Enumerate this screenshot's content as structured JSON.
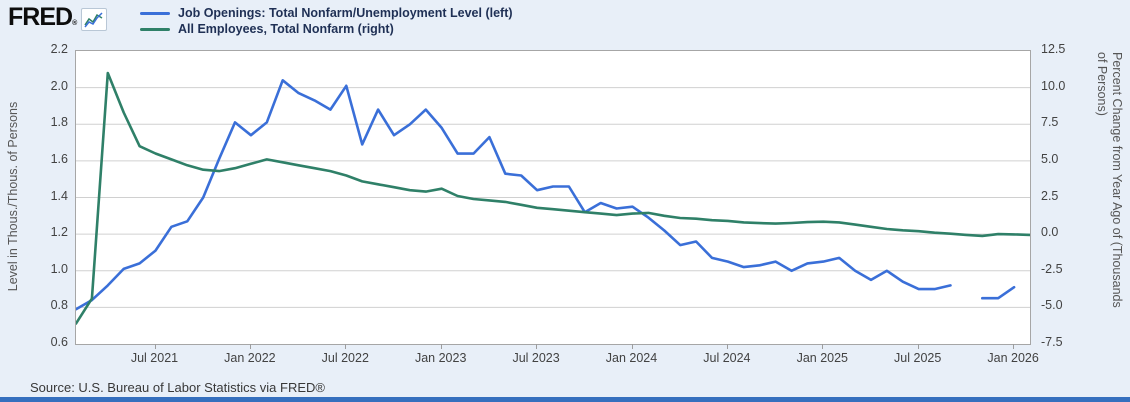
{
  "header": {
    "logo_text": "FRED",
    "registered_mark": "®"
  },
  "legend": [
    {
      "label": "Job Openings: Total Nonfarm/Unemployment Level (left)",
      "color": "#3a6fd8"
    },
    {
      "label": "All Employees, Total Nonfarm (right)",
      "color": "#2f8068"
    }
  ],
  "source": "Source: U.S. Bureau of Labor Statistics via FRED®",
  "colors": {
    "page_background": "#e8eff8",
    "plot_background": "#ffffff",
    "grid": "#d0d0d0",
    "plot_border": "#a6a6a6",
    "bottom_bar": "#356fbe",
    "blue_series": "#3a6fd8",
    "green_series": "#2f8068"
  },
  "chart_data": {
    "type": "line",
    "title": "",
    "frequency": "monthly",
    "x_start": "2021-02",
    "x_end": "2026-02",
    "months_total": 60,
    "grid": "horizontal-only",
    "legend_position": "top-left",
    "x_ticks": [
      {
        "label": "Jul 2021",
        "m": 5
      },
      {
        "label": "Jan 2022",
        "m": 11
      },
      {
        "label": "Jul 2022",
        "m": 17
      },
      {
        "label": "Jan 2023",
        "m": 23
      },
      {
        "label": "Jul 2023",
        "m": 29
      },
      {
        "label": "Jan 2024",
        "m": 35
      },
      {
        "label": "Jul 2024",
        "m": 41
      },
      {
        "label": "Jan 2025",
        "m": 47
      },
      {
        "label": "Jul 2025",
        "m": 53
      },
      {
        "label": "Jan 2026",
        "m": 59
      }
    ],
    "left_axis": {
      "label": "Level in Thous./Thous. of Persons",
      "min": 0.6,
      "max": 2.2,
      "ticks": [
        "2.2",
        "2.0",
        "1.8",
        "1.6",
        "1.4",
        "1.2",
        "1.0",
        "0.8",
        "0.6"
      ]
    },
    "right_axis": {
      "label_lines": [
        "Percent Change from Year Ago of (Thousands",
        "of Persons)"
      ],
      "min": -7.5,
      "max": 12.5,
      "ticks": [
        "12.5",
        "10.0",
        "7.5",
        "5.0",
        "2.5",
        "0.0",
        "-2.5",
        "-5.0",
        "-7.5"
      ]
    },
    "series": [
      {
        "name": "Job Openings: Total Nonfarm/Unemployment Level",
        "axis": "left",
        "color": "#3a6fd8",
        "segments": [
          {
            "start_month": "2021-02",
            "start_m": 0,
            "values": [
              0.79,
              0.84,
              0.92,
              1.01,
              1.04,
              1.11,
              1.24,
              1.27,
              1.4,
              1.61,
              1.81,
              1.74,
              1.81,
              2.04,
              1.97,
              1.93,
              1.88,
              2.01,
              1.69,
              1.88,
              1.74,
              1.8,
              1.88,
              1.78,
              1.64,
              1.64,
              1.73,
              1.53,
              1.52,
              1.44,
              1.46,
              1.46,
              1.32,
              1.37,
              1.34,
              1.35,
              1.29,
              1.22,
              1.14,
              1.16,
              1.07,
              1.05,
              1.02,
              1.03,
              1.05,
              1.0,
              1.04,
              1.05,
              1.07,
              1.0,
              0.95,
              1.0,
              0.94,
              0.9,
              0.9,
              0.92
            ]
          },
          {
            "start_month": "2025-11",
            "start_m": 57,
            "values": [
              0.85,
              0.85,
              0.91
            ]
          }
        ]
      },
      {
        "name": "All Employees, Total Nonfarm",
        "axis": "right",
        "color": "#2f8068",
        "segments": [
          {
            "start_month": "2021-02",
            "start_m": 0,
            "values": [
              -6.1,
              -4.4,
              11.0,
              8.3,
              6.0,
              5.5,
              5.1,
              4.7,
              4.4,
              4.3,
              4.5,
              4.8,
              5.1,
              4.9,
              4.7,
              4.5,
              4.3,
              4.0,
              3.6,
              3.4,
              3.2,
              3.0,
              2.9,
              3.1,
              2.6,
              2.4,
              2.3,
              2.2,
              2.0,
              1.8,
              1.7,
              1.6,
              1.5,
              1.4,
              1.3,
              1.4,
              1.45,
              1.25,
              1.1,
              1.05,
              0.95,
              0.9,
              0.8,
              0.75,
              0.72,
              0.76,
              0.82,
              0.85,
              0.8,
              0.65,
              0.5,
              0.35,
              0.26,
              0.2,
              0.1,
              0.03,
              -0.05,
              -0.12,
              0.0,
              -0.02,
              -0.05
            ]
          }
        ]
      }
    ]
  }
}
